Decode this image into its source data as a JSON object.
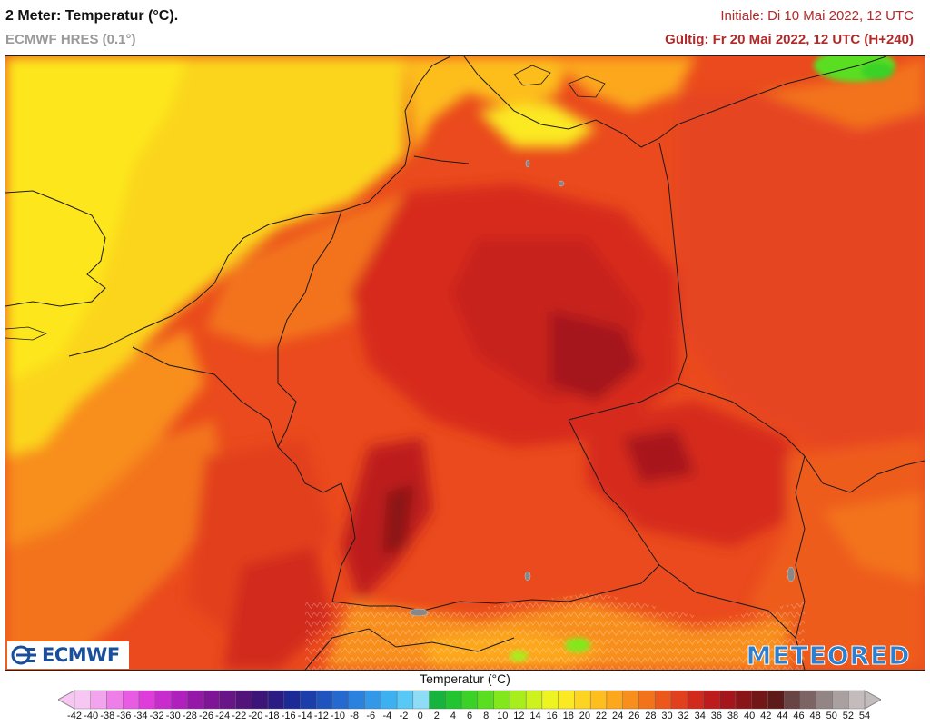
{
  "header": {
    "title": "2 Meter: Temperatur (°C).",
    "model": "ECMWF HRES (0.1°)",
    "initial": "Initiale: Di 10 Mai 2022, 12 UTC",
    "valid": "Gültig: Fr 20 Mai 2022, 12 UTC (H+240)"
  },
  "logos": {
    "left": "ECMWF",
    "right": "METEORED"
  },
  "legend": {
    "title": "Temperatur (°C)",
    "ticks": [
      "-42",
      "-40",
      "-38",
      "-36",
      "-34",
      "-32",
      "-30",
      "-28",
      "-26",
      "-24",
      "-22",
      "-20",
      "-18",
      "-16",
      "-14",
      "-12",
      "-10",
      "-8",
      "-6",
      "-4",
      "-2",
      "0",
      "2",
      "4",
      "6",
      "8",
      "10",
      "12",
      "14",
      "16",
      "18",
      "20",
      "22",
      "24",
      "26",
      "28",
      "30",
      "32",
      "34",
      "36",
      "38",
      "40",
      "42",
      "44",
      "46",
      "48",
      "50",
      "52",
      "54"
    ],
    "colors": [
      "#f7c6f2",
      "#f2a4ee",
      "#ee7fe9",
      "#e85ce4",
      "#de3ddc",
      "#c92ccd",
      "#b020bd",
      "#9618a8",
      "#7e1596",
      "#671587",
      "#52147a",
      "#3d1578",
      "#2b1c84",
      "#1c2a96",
      "#1b3eaa",
      "#1f53be",
      "#2469d0",
      "#2b81de",
      "#3498e8",
      "#3cb0f0",
      "#58c8f4",
      "#8fdcf6",
      "#16b33e",
      "#22c430",
      "#3bd228",
      "#5ade20",
      "#82e81c",
      "#a8ee1c",
      "#cdf21e",
      "#eef421",
      "#fbe923",
      "#fdd421",
      "#fdbe1e",
      "#fca71c",
      "#f88e1b",
      "#f3731b",
      "#ec581c",
      "#e23f1d",
      "#d2291d",
      "#bd1b1c",
      "#a4161b",
      "#8a1519",
      "#721718",
      "#5d1a18",
      "#684444",
      "#7d6464",
      "#938585",
      "#aaa0a0",
      "#c4bcbc"
    ]
  },
  "icons": [
    "ecmwf-logo-icon",
    "legend-arrow-left-icon",
    "legend-arrow-right-icon"
  ]
}
